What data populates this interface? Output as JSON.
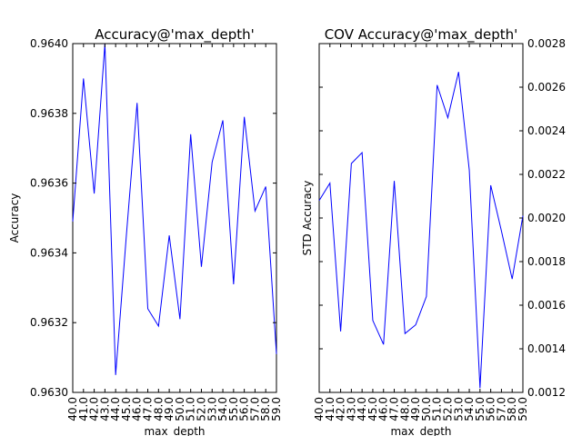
{
  "chart_data": [
    {
      "type": "line",
      "title": "Accuracy@'max_depth'",
      "xlabel": "max_depth",
      "ylabel": "Accuracy",
      "x": [
        40,
        41,
        42,
        43,
        44,
        45,
        46,
        47,
        48,
        49,
        50,
        51,
        52,
        53,
        54,
        55,
        56,
        57,
        58,
        59
      ],
      "x_tick_labels": [
        "40.0",
        "41.0",
        "42.0",
        "43.0",
        "44.0",
        "45.0",
        "46.0",
        "47.0",
        "48.0",
        "49.0",
        "50.0",
        "51.0",
        "52.0",
        "53.0",
        "54.0",
        "55.0",
        "56.0",
        "57.0",
        "58.0",
        "59.0"
      ],
      "xlim": [
        40,
        59
      ],
      "ylim": [
        0.963,
        0.964
      ],
      "y_ticks": [
        0.963,
        0.9632,
        0.9634,
        0.9636,
        0.9638,
        0.964
      ],
      "y_tick_labels": [
        "0.9630",
        "0.9632",
        "0.9634",
        "0.9636",
        "0.9638",
        "0.9640"
      ],
      "y_axis_side": "left",
      "grid": false,
      "series": [
        {
          "color": "#0000ff",
          "values": [
            0.96349,
            0.9639,
            0.96357,
            0.964,
            0.96305,
            0.96345,
            0.96383,
            0.96324,
            0.96319,
            0.96345,
            0.96321,
            0.96374,
            0.96336,
            0.96366,
            0.96378,
            0.96331,
            0.96379,
            0.96352,
            0.96359,
            0.96311
          ]
        }
      ]
    },
    {
      "type": "line",
      "title": "COV Accuracy@'max_depth'",
      "xlabel": "max_depth",
      "ylabel": "STD Accuracy",
      "x": [
        40,
        41,
        42,
        43,
        44,
        45,
        46,
        47,
        48,
        49,
        50,
        51,
        52,
        53,
        54,
        55,
        56,
        57,
        58,
        59
      ],
      "x_tick_labels": [
        "40.0",
        "41.0",
        "42.0",
        "43.0",
        "44.0",
        "45.0",
        "46.0",
        "47.0",
        "48.0",
        "49.0",
        "50.0",
        "51.0",
        "52.0",
        "53.0",
        "54.0",
        "55.0",
        "56.0",
        "57.0",
        "58.0",
        "59.0"
      ],
      "xlim": [
        40,
        59
      ],
      "ylim": [
        0.0012,
        0.0028
      ],
      "y_ticks": [
        0.0012,
        0.0014,
        0.0016,
        0.0018,
        0.002,
        0.0022,
        0.0024,
        0.0026,
        0.0028
      ],
      "y_tick_labels": [
        "0.0012",
        "0.0014",
        "0.0016",
        "0.0018",
        "0.0020",
        "0.0022",
        "0.0024",
        "0.0026",
        "0.0028"
      ],
      "y_axis_side": "right",
      "grid": false,
      "series": [
        {
          "color": "#0000ff",
          "values": [
            0.00208,
            0.00216,
            0.00148,
            0.00225,
            0.0023,
            0.00153,
            0.00142,
            0.00217,
            0.00147,
            0.00151,
            0.00164,
            0.00261,
            0.00246,
            0.00267,
            0.00222,
            0.00122,
            0.00215,
            0.00194,
            0.00172,
            0.00201
          ]
        }
      ]
    }
  ]
}
